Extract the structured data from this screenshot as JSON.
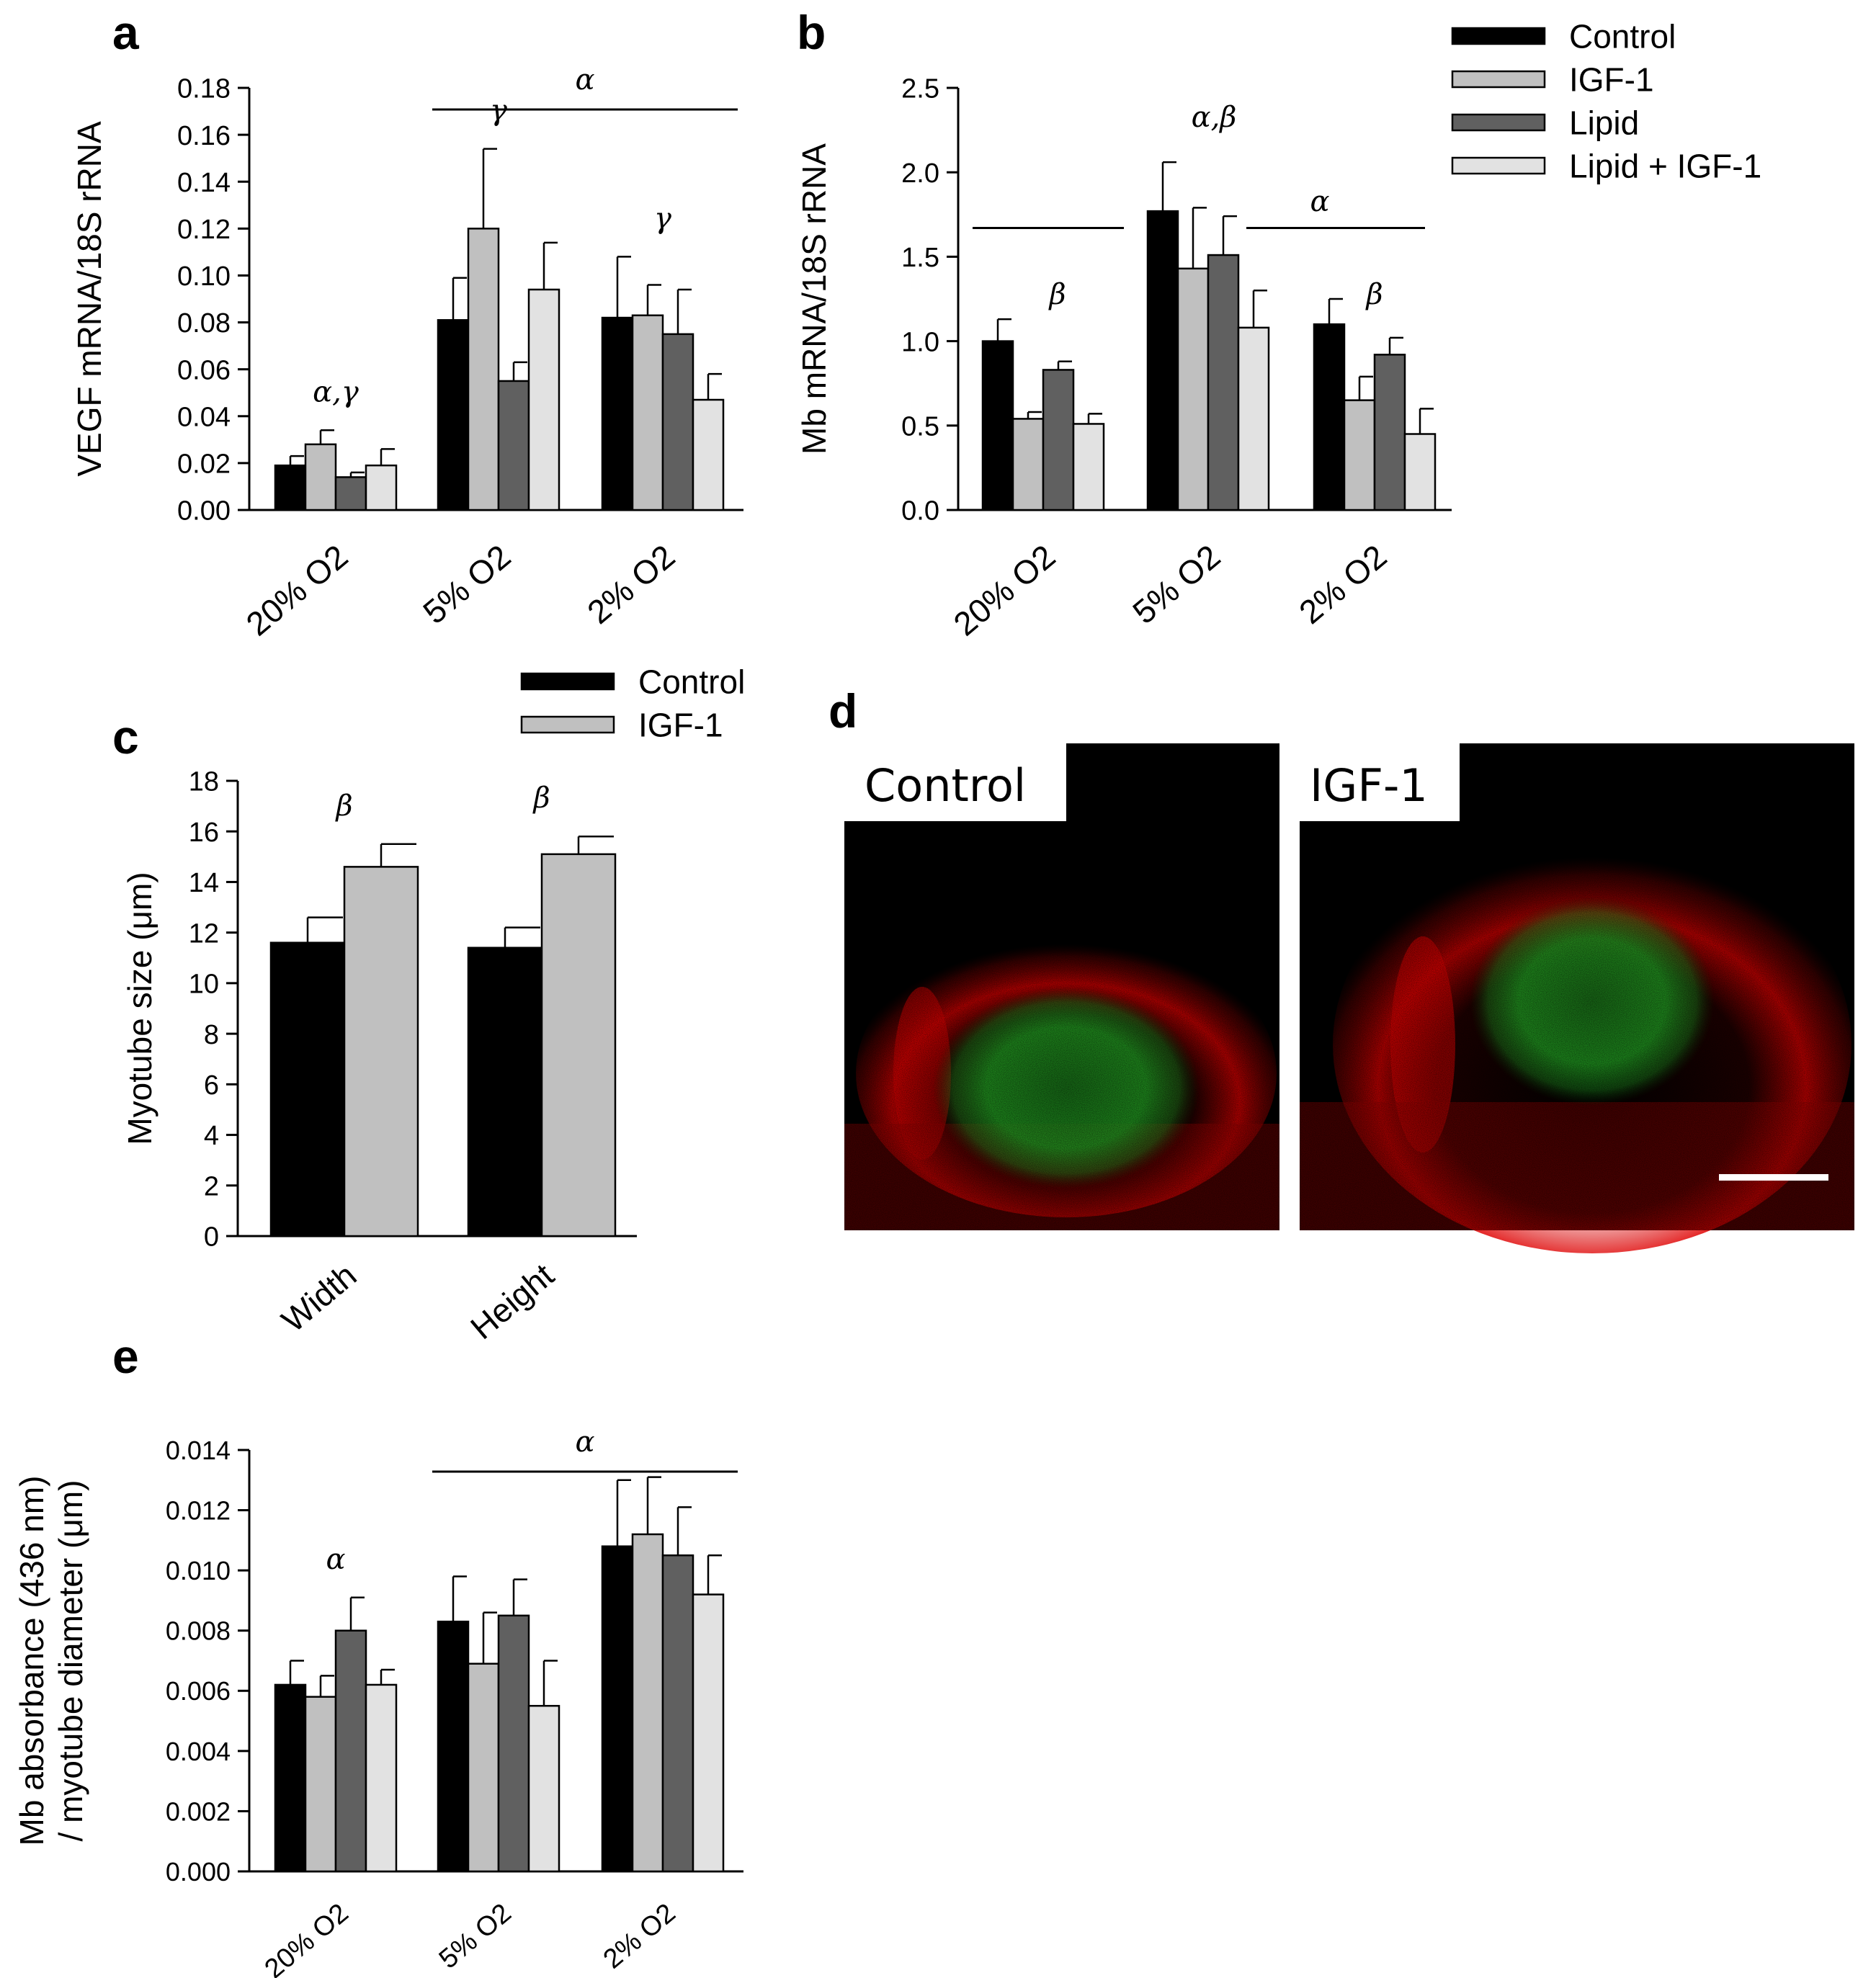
{
  "colors": {
    "control": "#000000",
    "igf1": "#c0c0c0",
    "lipid": "#606060",
    "lipid_igf1": "#e2e2e2"
  },
  "legend_top": [
    "Control",
    "IGF-1",
    "Lipid",
    "Lipid + IGF-1"
  ],
  "legend_c": [
    "Control",
    "IGF-1"
  ],
  "chart_data": [
    {
      "panel": "a",
      "type": "bar",
      "categories": [
        "20% O2",
        "5% O2",
        "2% O2"
      ],
      "ylabel": "VEGF mRNA/18S rRNA",
      "ylim": [
        0,
        0.18
      ],
      "yticks": [
        "0.00",
        "0.02",
        "0.04",
        "0.06",
        "0.08",
        "0.10",
        "0.12",
        "0.14",
        "0.16",
        "0.18"
      ],
      "series": [
        {
          "name": "Control",
          "values": [
            0.019,
            0.081,
            0.082
          ],
          "errors": [
            0.004,
            0.018,
            0.026
          ]
        },
        {
          "name": "IGF-1",
          "values": [
            0.028,
            0.12,
            0.083
          ],
          "errors": [
            0.006,
            0.034,
            0.013
          ]
        },
        {
          "name": "Lipid",
          "values": [
            0.014,
            0.055,
            0.075
          ],
          "errors": [
            0.002,
            0.008,
            0.019
          ]
        },
        {
          "name": "Lipid + IGF-1",
          "values": [
            0.019,
            0.094,
            0.047
          ],
          "errors": [
            0.007,
            0.02,
            0.011
          ]
        }
      ],
      "annotations": [
        {
          "text": "α,γ",
          "category": 0
        },
        {
          "text": "γ",
          "category": 1
        },
        {
          "text": "γ",
          "category": 2
        },
        {
          "text": "α",
          "span": [
            1,
            2
          ]
        }
      ]
    },
    {
      "panel": "b",
      "type": "bar",
      "categories": [
        "20% O2",
        "5% O2",
        "2% O2"
      ],
      "ylabel": "Mb mRNA/18S rRNA",
      "ylim": [
        0,
        2.5
      ],
      "yticks": [
        "0.0",
        "0.5",
        "1.0",
        "1.5",
        "2.0",
        "2.5"
      ],
      "series": [
        {
          "name": "Control",
          "values": [
            1.0,
            1.77,
            1.1
          ],
          "errors": [
            0.13,
            0.29,
            0.15
          ]
        },
        {
          "name": "IGF-1",
          "values": [
            0.54,
            1.43,
            0.65
          ],
          "errors": [
            0.04,
            0.36,
            0.14
          ]
        },
        {
          "name": "Lipid",
          "values": [
            0.83,
            1.51,
            0.92
          ],
          "errors": [
            0.05,
            0.23,
            0.1
          ]
        },
        {
          "name": "Lipid + IGF-1",
          "values": [
            0.51,
            1.08,
            0.45
          ],
          "errors": [
            0.06,
            0.22,
            0.15
          ]
        }
      ],
      "annotations": [
        {
          "text": "β",
          "category": 0
        },
        {
          "text": "α,β",
          "category": 1
        },
        {
          "text": "β",
          "category": 2
        },
        {
          "text": "α",
          "category": 2
        }
      ]
    },
    {
      "panel": "c",
      "type": "bar",
      "categories": [
        "Width",
        "Height"
      ],
      "ylabel": "Myotube size (μm)",
      "ylim": [
        0,
        18
      ],
      "yticks": [
        "0",
        "2",
        "4",
        "6",
        "8",
        "10",
        "12",
        "14",
        "16",
        "18"
      ],
      "series": [
        {
          "name": "Control",
          "values": [
            11.6,
            11.4
          ],
          "errors": [
            1.0,
            0.8
          ]
        },
        {
          "name": "IGF-1",
          "values": [
            14.6,
            15.1
          ],
          "errors": [
            0.9,
            0.7
          ]
        }
      ],
      "annotations": [
        {
          "text": "β",
          "category": 0
        },
        {
          "text": "β",
          "category": 1
        }
      ]
    },
    {
      "panel": "e",
      "type": "bar",
      "categories": [
        "20% O2",
        "5% O2",
        "2% O2"
      ],
      "ylabel_lines": [
        "Mb absorbance (436 nm)",
        "/ myotube diameter (μm)"
      ],
      "ylim": [
        0,
        0.014
      ],
      "yticks": [
        "0.000",
        "0.002",
        "0.004",
        "0.006",
        "0.008",
        "0.010",
        "0.012",
        "0.014"
      ],
      "series": [
        {
          "name": "Control",
          "values": [
            0.0062,
            0.0083,
            0.0108
          ],
          "errors": [
            0.0008,
            0.0015,
            0.0022
          ]
        },
        {
          "name": "IGF-1",
          "values": [
            0.0058,
            0.0069,
            0.0112
          ],
          "errors": [
            0.0007,
            0.0017,
            0.0019
          ]
        },
        {
          "name": "Lipid",
          "values": [
            0.008,
            0.0085,
            0.0105
          ],
          "errors": [
            0.0011,
            0.0012,
            0.0016
          ]
        },
        {
          "name": "Lipid + IGF-1",
          "values": [
            0.0062,
            0.0055,
            0.0092
          ],
          "errors": [
            0.0005,
            0.0015,
            0.0013
          ]
        }
      ],
      "annotations": [
        {
          "text": "α",
          "category": 0
        },
        {
          "text": "α",
          "span": [
            1,
            2
          ]
        }
      ]
    }
  ],
  "panel_letters": [
    "a",
    "b",
    "c",
    "d",
    "e"
  ],
  "image_panel": {
    "labels": [
      "Control",
      "IGF-1"
    ]
  }
}
